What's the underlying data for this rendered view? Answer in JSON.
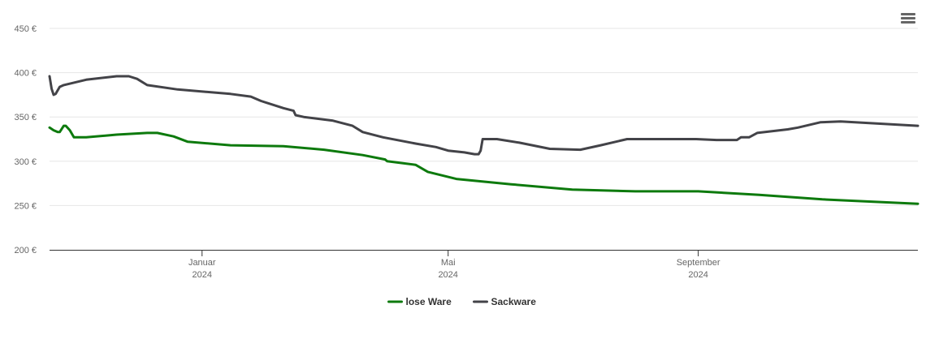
{
  "chart_data": {
    "type": "line",
    "title": "",
    "xlabel": "",
    "ylabel": "",
    "ylim": [
      200,
      450
    ],
    "y_ticks": [
      "200 €",
      "250 €",
      "300 €",
      "350 €",
      "400 €",
      "450 €"
    ],
    "y_tick_values": [
      200,
      250,
      300,
      350,
      400,
      450
    ],
    "xlim": [
      "2023-10-18",
      "2024-12-18"
    ],
    "x_ticks": [
      {
        "date": "2024-01-01",
        "month": "Januar",
        "year": "2024"
      },
      {
        "date": "2024-05-01",
        "month": "Mai",
        "year": "2024"
      },
      {
        "date": "2024-09-01",
        "month": "September",
        "year": "2024"
      }
    ],
    "grid": true,
    "legend_position": "bottom-center",
    "series": [
      {
        "name": "lose Ware",
        "color": "#0d7a0d",
        "points": [
          [
            "2023-10-18",
            338
          ],
          [
            "2023-10-20",
            335
          ],
          [
            "2023-10-22",
            333
          ],
          [
            "2023-10-23",
            333
          ],
          [
            "2023-10-25",
            340
          ],
          [
            "2023-10-26",
            340
          ],
          [
            "2023-10-28",
            335
          ],
          [
            "2023-10-30",
            327
          ],
          [
            "2023-11-05",
            327
          ],
          [
            "2023-11-20",
            330
          ],
          [
            "2023-12-05",
            332
          ],
          [
            "2023-12-10",
            332
          ],
          [
            "2023-12-18",
            328
          ],
          [
            "2023-12-25",
            322
          ],
          [
            "2024-01-15",
            318
          ],
          [
            "2024-02-10",
            317
          ],
          [
            "2024-03-01",
            313
          ],
          [
            "2024-03-20",
            307
          ],
          [
            "2024-03-31",
            302
          ],
          [
            "2024-04-01",
            300
          ],
          [
            "2024-04-15",
            296
          ],
          [
            "2024-04-21",
            288
          ],
          [
            "2024-05-05",
            280
          ],
          [
            "2024-06-01",
            274
          ],
          [
            "2024-07-01",
            268
          ],
          [
            "2024-08-01",
            266
          ],
          [
            "2024-09-01",
            266
          ],
          [
            "2024-10-01",
            262
          ],
          [
            "2024-11-01",
            257
          ],
          [
            "2024-12-18",
            252
          ]
        ]
      },
      {
        "name": "Sackware",
        "color": "#434348",
        "points": [
          [
            "2023-10-18",
            396
          ],
          [
            "2023-10-19",
            382
          ],
          [
            "2023-10-20",
            375
          ],
          [
            "2023-10-21",
            376
          ],
          [
            "2023-10-23",
            384
          ],
          [
            "2023-10-25",
            386
          ],
          [
            "2023-11-05",
            392
          ],
          [
            "2023-11-20",
            396
          ],
          [
            "2023-11-26",
            396
          ],
          [
            "2023-11-30",
            393
          ],
          [
            "2023-12-05",
            386
          ],
          [
            "2023-12-20",
            381
          ],
          [
            "2024-01-15",
            376
          ],
          [
            "2024-01-25",
            373
          ],
          [
            "2024-01-30",
            368
          ],
          [
            "2024-02-10",
            360
          ],
          [
            "2024-02-15",
            357
          ],
          [
            "2024-02-16",
            352
          ],
          [
            "2024-02-20",
            350
          ],
          [
            "2024-03-05",
            346
          ],
          [
            "2024-03-15",
            340
          ],
          [
            "2024-03-20",
            333
          ],
          [
            "2024-03-30",
            327
          ],
          [
            "2024-04-15",
            320
          ],
          [
            "2024-04-25",
            316
          ],
          [
            "2024-05-01",
            312
          ],
          [
            "2024-05-09",
            310
          ],
          [
            "2024-05-14",
            308
          ],
          [
            "2024-05-16",
            308
          ],
          [
            "2024-05-17",
            312
          ],
          [
            "2024-05-18",
            325
          ],
          [
            "2024-05-25",
            325
          ],
          [
            "2024-06-05",
            321
          ],
          [
            "2024-06-20",
            314
          ],
          [
            "2024-07-05",
            313
          ],
          [
            "2024-07-15",
            318
          ],
          [
            "2024-07-28",
            325
          ],
          [
            "2024-08-01",
            325
          ],
          [
            "2024-08-31",
            325
          ],
          [
            "2024-09-10",
            324
          ],
          [
            "2024-09-20",
            324
          ],
          [
            "2024-09-22",
            327
          ],
          [
            "2024-09-26",
            327
          ],
          [
            "2024-09-30",
            332
          ],
          [
            "2024-10-15",
            336
          ],
          [
            "2024-10-20",
            338
          ],
          [
            "2024-10-31",
            344
          ],
          [
            "2024-11-10",
            345
          ],
          [
            "2024-12-18",
            340
          ]
        ]
      }
    ]
  },
  "toolbar": {
    "menu_icon": "hamburger-menu-icon"
  }
}
